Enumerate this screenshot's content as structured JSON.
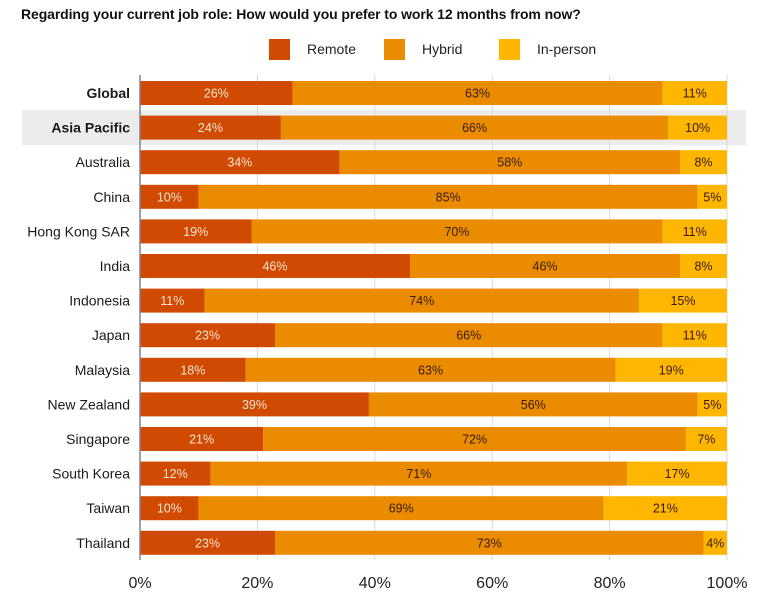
{
  "chart_data": {
    "type": "bar",
    "orientation": "horizontal",
    "stacked": true,
    "title": "Regarding your current job role: How would you prefer to work 12 months from now?",
    "xlabel": "",
    "ylabel": "",
    "xlim": [
      0,
      100
    ],
    "x_ticks": [
      "0%",
      "20%",
      "40%",
      "60%",
      "80%",
      "100%"
    ],
    "grid": true,
    "legend_position": "top-center",
    "categories": [
      "Global",
      "Asia Pacific",
      "Australia",
      "China",
      "Hong Kong SAR",
      "India",
      "Indonesia",
      "Japan",
      "Malaysia",
      "New Zealand",
      "Singapore",
      "South Korea",
      "Taiwan",
      "Thailand"
    ],
    "bold_categories": [
      "Global",
      "Asia Pacific"
    ],
    "highlighted_category": "Asia Pacific",
    "series": [
      {
        "name": "Remote",
        "color": "#d04a02",
        "label_color": "#fbe3d0",
        "values": [
          26,
          24,
          34,
          10,
          19,
          46,
          11,
          23,
          18,
          39,
          21,
          12,
          10,
          23
        ]
      },
      {
        "name": "Hybrid",
        "color": "#eb8c00",
        "label_color": "#3a1a00",
        "values": [
          63,
          66,
          58,
          85,
          70,
          46,
          74,
          66,
          63,
          56,
          72,
          71,
          69,
          73
        ]
      },
      {
        "name": "In-person",
        "color": "#ffb600",
        "label_color": "#3a1a00",
        "values": [
          11,
          10,
          8,
          5,
          11,
          8,
          15,
          11,
          19,
          5,
          7,
          17,
          21,
          4
        ]
      }
    ],
    "value_suffix": "%"
  },
  "colors": {
    "highlight_band": "#ececec",
    "gridline": "#d9d9d9",
    "axis_line": "#7a8591"
  }
}
